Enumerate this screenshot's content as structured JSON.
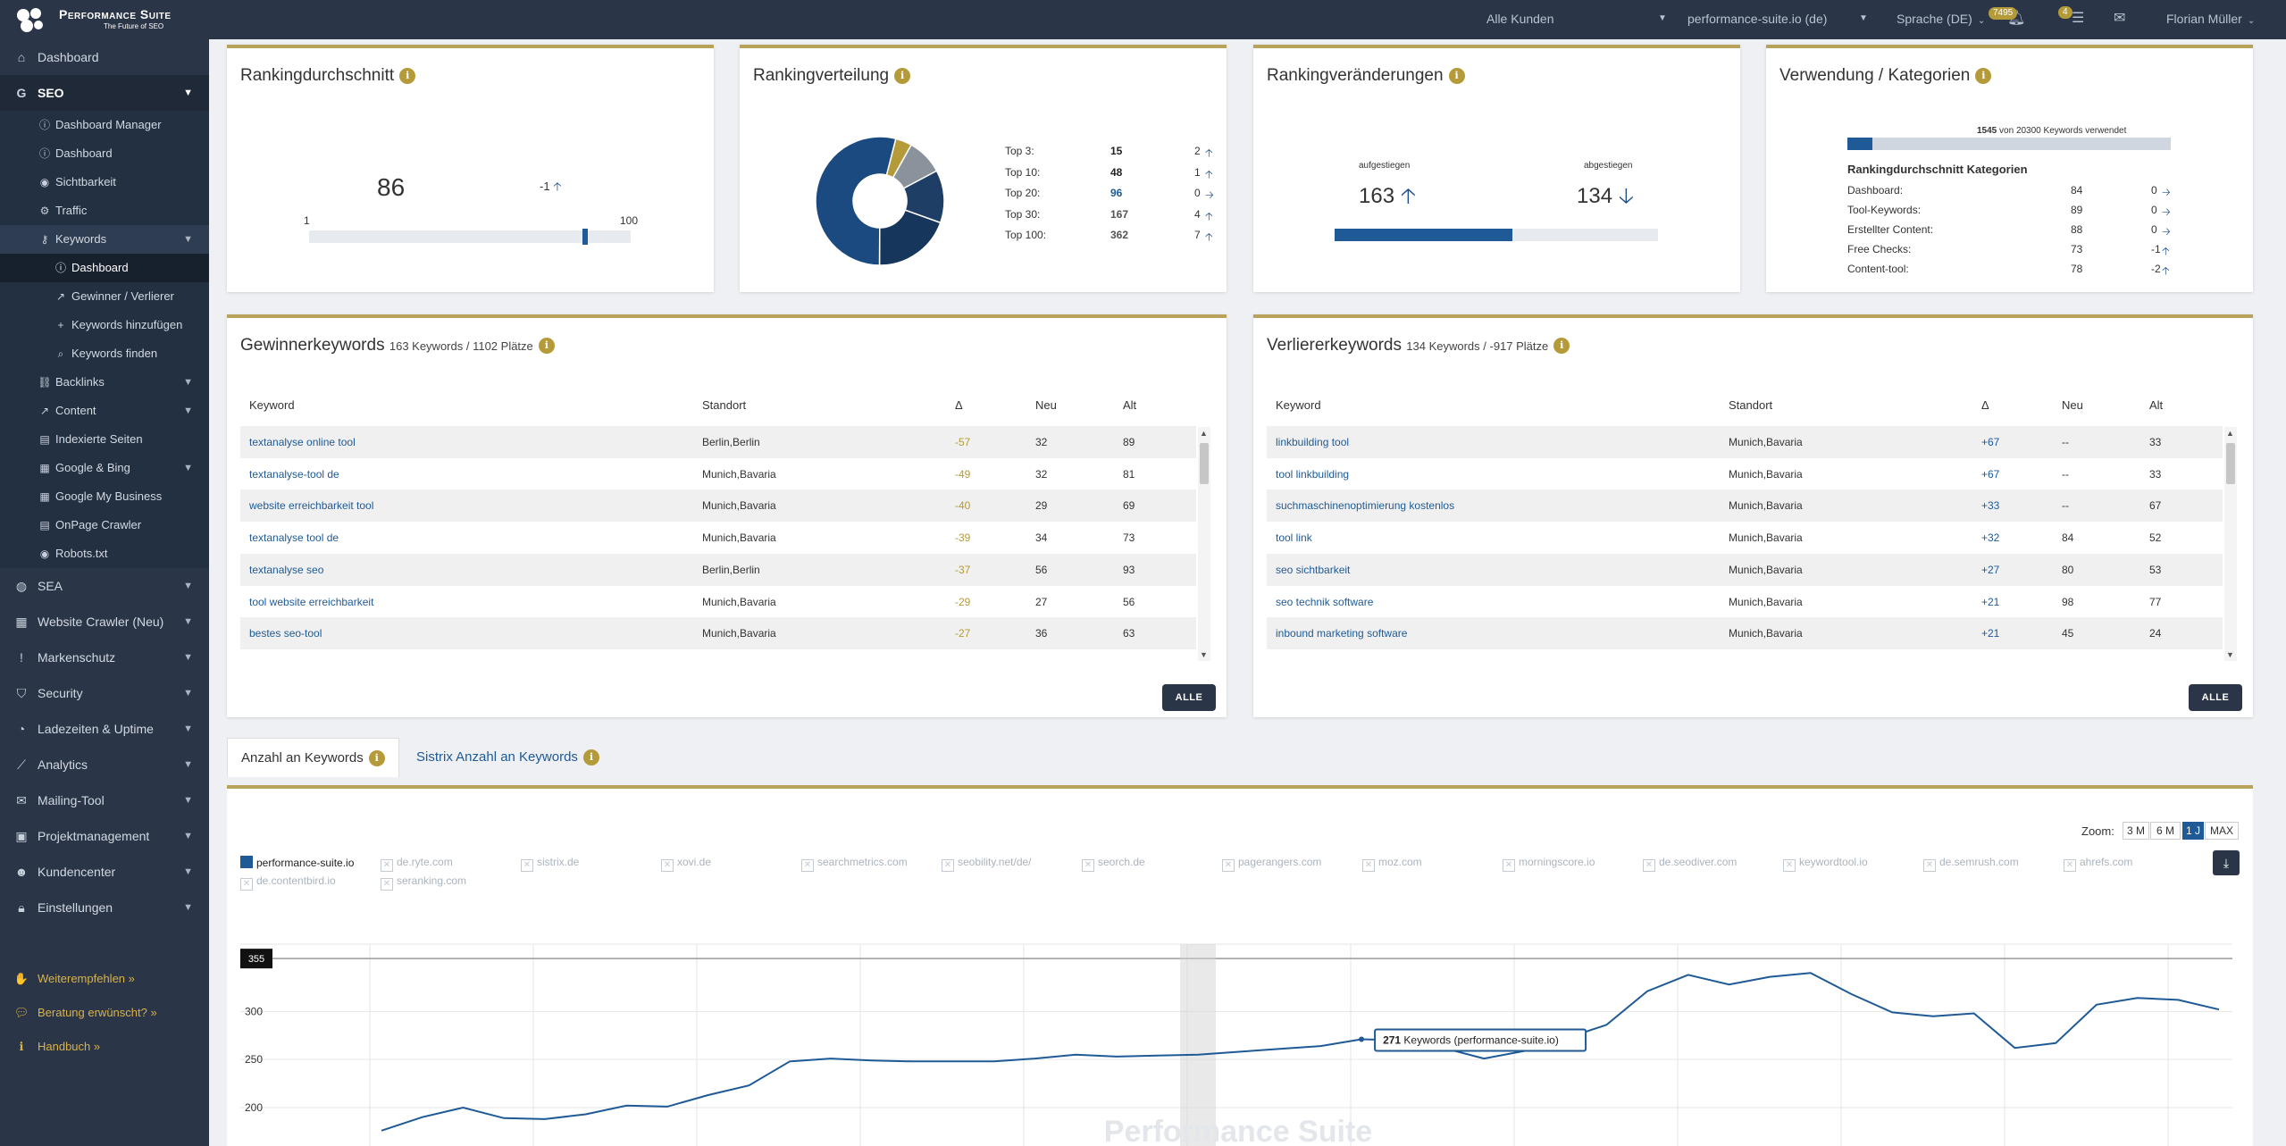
{
  "topbar": {
    "brand": "Performance Suite",
    "tagline": "The Future of SEO",
    "customer_select": "Alle Kunden",
    "project_select": "performance-suite.io (de)",
    "language": "Sprache (DE)",
    "notif_count": "7495",
    "task_count": "4",
    "user": "Florian Müller"
  },
  "sidebar": {
    "items": [
      {
        "label": "Dashboard",
        "icon": "home-icon"
      },
      {
        "label": "SEO",
        "icon": "google-icon"
      }
    ],
    "seo_sub": [
      {
        "label": "Dashboard Manager",
        "icon": "info-icon"
      },
      {
        "label": "Dashboard",
        "icon": "info-icon"
      },
      {
        "label": "Sichtbarkeit",
        "icon": "eye-icon"
      },
      {
        "label": "Traffic",
        "icon": "traffic-icon"
      },
      {
        "label": "Keywords",
        "icon": "key-icon"
      }
    ],
    "kw_sub": [
      {
        "label": "Dashboard",
        "icon": "info-icon"
      },
      {
        "label": "Gewinner / Verlierer",
        "icon": "external-link-icon"
      },
      {
        "label": "Keywords hinzufügen",
        "icon": "plus-icon"
      },
      {
        "label": "Keywords finden",
        "icon": "search-icon"
      }
    ],
    "seo_sub2": [
      {
        "label": "Backlinks",
        "icon": "link-icon"
      },
      {
        "label": "Content",
        "icon": "external-link-icon"
      },
      {
        "label": "Indexierte Seiten",
        "icon": "document-icon"
      },
      {
        "label": "Google & Bing",
        "icon": "chart-icon"
      },
      {
        "label": "Google My Business",
        "icon": "chart-icon"
      },
      {
        "label": "OnPage Crawler",
        "icon": "document-icon"
      },
      {
        "label": "Robots.txt",
        "icon": "eye-icon"
      }
    ],
    "main_lower": [
      {
        "label": "SEA",
        "icon": "globe-icon"
      },
      {
        "label": "Website Crawler (Neu)",
        "icon": "chart-icon"
      },
      {
        "label": "Markenschutz",
        "icon": "exclamation-icon"
      },
      {
        "label": "Security",
        "icon": "shield-icon"
      },
      {
        "label": "Ladezeiten & Uptime",
        "icon": "gauge-icon"
      },
      {
        "label": "Analytics",
        "icon": "line-chart-icon"
      },
      {
        "label": "Mailing-Tool",
        "icon": "mail-icon"
      },
      {
        "label": "Projektmanagement",
        "icon": "briefcase-icon"
      },
      {
        "label": "Kundencenter",
        "icon": "users-icon"
      },
      {
        "label": "Einstellungen",
        "icon": "lock-icon"
      }
    ],
    "footer": [
      {
        "label": "Weiterempfehlen »",
        "icon": "handshake-icon"
      },
      {
        "label": "Beratung erwünscht? »",
        "icon": "chat-icon"
      },
      {
        "label": "Handbuch »",
        "icon": "info-icon"
      }
    ]
  },
  "ranking_avg": {
    "title": "Rankingdurchschnitt",
    "value": "86",
    "delta": "-1",
    "min": "1",
    "max": "100",
    "position": 86
  },
  "ranking_dist": {
    "title": "Rankingverteilung",
    "rows": [
      {
        "label": "Top 3:",
        "value": "15",
        "delta": "2",
        "dir": "up"
      },
      {
        "label": "Top 10:",
        "value": "48",
        "delta": "1",
        "dir": "up"
      },
      {
        "label": "Top 20:",
        "value": "96",
        "delta": "0",
        "dir": "right"
      },
      {
        "label": "Top 30:",
        "value": "167",
        "delta": "4",
        "dir": "up"
      },
      {
        "label": "Top 100:",
        "value": "362",
        "delta": "7",
        "dir": "up"
      }
    ]
  },
  "ranking_change": {
    "title": "Rankingveränderungen",
    "up_label": "aufgestiegen",
    "up_value": "163",
    "down_label": "abgestiegen",
    "down_value": "134",
    "up_share": 0.549
  },
  "usage": {
    "title": "Verwendung / Kategorien",
    "used": "1545",
    "total": "20300",
    "used_text": "von",
    "used_suffix": "Keywords verwendet",
    "used_share": 0.076,
    "subtitle": "Rankingdurchschnitt Kategorien",
    "rows": [
      {
        "label": "Dashboard:",
        "value": "84",
        "delta": "0",
        "dir": "right"
      },
      {
        "label": "Tool-Keywords:",
        "value": "89",
        "delta": "0",
        "dir": "right"
      },
      {
        "label": "Erstellter Content:",
        "value": "88",
        "delta": "0",
        "dir": "right"
      },
      {
        "label": "Free Checks:",
        "value": "73",
        "delta": "-1",
        "dir": "up"
      },
      {
        "label": "Content-tool:",
        "value": "78",
        "delta": "-2",
        "dir": "up"
      }
    ]
  },
  "winners": {
    "title": "Gewinnerkeywords",
    "subtitle": "163 Keywords / 1102 Plätze",
    "cols": [
      "Keyword",
      "Standort",
      "Δ",
      "Neu",
      "Alt"
    ],
    "rows": [
      [
        "textanalyse online tool",
        "Berlin,Berlin",
        "-57",
        "32",
        "89"
      ],
      [
        "textanalyse-tool de",
        "Munich,Bavaria",
        "-49",
        "32",
        "81"
      ],
      [
        "website erreichbarkeit tool",
        "Munich,Bavaria",
        "-40",
        "29",
        "69"
      ],
      [
        "textanalyse tool de",
        "Munich,Bavaria",
        "-39",
        "34",
        "73"
      ],
      [
        "textanalyse seo",
        "Berlin,Berlin",
        "-37",
        "56",
        "93"
      ],
      [
        "tool website erreichbarkeit",
        "Munich,Bavaria",
        "-29",
        "27",
        "56"
      ],
      [
        "bestes seo-tool",
        "Munich,Bavaria",
        "-27",
        "36",
        "63"
      ]
    ],
    "button": "ALLE"
  },
  "losers": {
    "title": "Verliererkeywords",
    "subtitle": "134 Keywords / -917 Plätze",
    "cols": [
      "Keyword",
      "Standort",
      "Δ",
      "Neu",
      "Alt"
    ],
    "rows": [
      [
        "linkbuilding tool",
        "Munich,Bavaria",
        "+67",
        "--",
        "33"
      ],
      [
        "tool linkbuilding",
        "Munich,Bavaria",
        "+67",
        "--",
        "33"
      ],
      [
        "suchmaschinenoptimierung kostenlos",
        "Munich,Bavaria",
        "+33",
        "--",
        "67"
      ],
      [
        "tool link",
        "Munich,Bavaria",
        "+32",
        "84",
        "52"
      ],
      [
        "seo sichtbarkeit",
        "Munich,Bavaria",
        "+27",
        "80",
        "53"
      ],
      [
        "seo technik software",
        "Munich,Bavaria",
        "+21",
        "98",
        "77"
      ],
      [
        "inbound marketing software",
        "Munich,Bavaria",
        "+21",
        "45",
        "24"
      ]
    ],
    "button": "ALLE"
  },
  "tabs": [
    {
      "label": "Anzahl an Keywords"
    },
    {
      "label": "Sistrix Anzahl an Keywords"
    }
  ],
  "zoom": {
    "label": "Zoom:",
    "options": [
      "3 M",
      "6 M",
      "1 J",
      "MAX"
    ],
    "selected": "1 J"
  },
  "legend": [
    "performance-suite.io",
    "de.ryte.com",
    "sistrix.de",
    "xovi.de",
    "searchmetrics.com",
    "seobility.net/de/",
    "seorch.de",
    "pagerangers.com",
    "moz.com",
    "morningscore.io",
    "de.seodiver.com",
    "keywordtool.io",
    "de.semrush.com",
    "ahrefs.com",
    "de.contentbird.io",
    "seranking.com"
  ],
  "chart_data": {
    "type": "line",
    "series": [
      {
        "name": "performance-suite.io",
        "values": [
          176,
          190,
          200,
          189,
          188,
          193,
          202,
          201,
          213,
          223,
          248,
          251,
          249,
          248,
          248,
          248,
          251,
          255,
          253,
          254,
          255,
          258,
          261,
          264,
          271,
          270,
          262,
          251,
          259,
          272,
          286,
          321,
          338,
          328,
          336,
          340,
          318,
          299,
          295,
          298,
          262,
          267,
          307,
          314,
          312,
          302
        ]
      }
    ],
    "y_ticks": [
      "200",
      "250",
      "300"
    ],
    "ylim": [
      160,
      370
    ],
    "max_marker": "355",
    "max_value": 355,
    "tooltip": {
      "value": "271",
      "text": "Keywords (performance-suite.io)",
      "index": 24
    },
    "watermark": "Performance Suite"
  }
}
